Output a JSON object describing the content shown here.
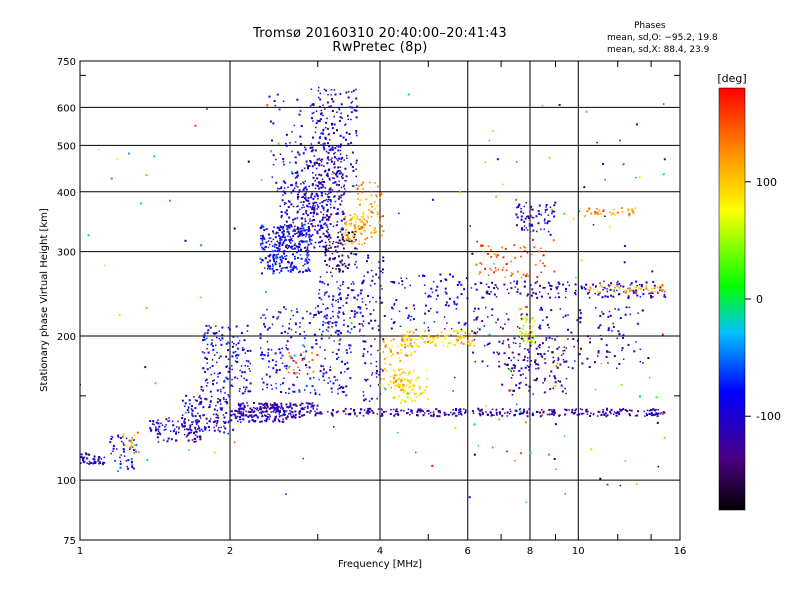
{
  "chart_data": {
    "type": "scatter",
    "title": "Tromsø 20160310 20:40:00–20:41:43",
    "subtitle": "RwPretec (8p)",
    "xlabel": "Frequency [MHz]",
    "ylabel": "Stationary phase Virtual Height [km]",
    "x_scale": "log",
    "y_scale": "log",
    "xlim": [
      1,
      16
    ],
    "ylim": [
      75,
      750
    ],
    "x_ticks": [
      "1",
      "2",
      "4",
      "6",
      "8",
      "10",
      "16"
    ],
    "x_tick_values": [
      1,
      2,
      4,
      6,
      8,
      10,
      16
    ],
    "y_ticks": [
      "75",
      "100",
      "200",
      "300",
      "400",
      "500",
      "600",
      "750"
    ],
    "y_tick_values": [
      75,
      100,
      200,
      300,
      400,
      500,
      600,
      750
    ],
    "x_minor_ticks": [
      3,
      5,
      7,
      9,
      12,
      14
    ],
    "y_minor_ticks": [
      150,
      700
    ],
    "grid": true,
    "colorbar": {
      "label": "[deg]",
      "range": [
        -180,
        180
      ],
      "ticks": [
        "100",
        "0",
        "-100"
      ],
      "tick_values": [
        100,
        0,
        -100
      ],
      "colors": [
        "#000000",
        "#4b0082",
        "#0000ff",
        "#00bfff",
        "#00ff00",
        "#ffff00",
        "#ff8c00",
        "#ff0000"
      ]
    },
    "stats": {
      "heading": "Phases",
      "o_line": "mean, sd,O: −95.2, 19.8",
      "x_line": "mean, sd,X:  88.4, 23.9"
    },
    "clusters": [
      {
        "f": [
          1.0,
          1.12
        ],
        "h": [
          108,
          114
        ],
        "phase": -110,
        "n": 40
      },
      {
        "f": [
          1.15,
          1.3
        ],
        "h": [
          104,
          124
        ],
        "phase": -80,
        "n": 45
      },
      {
        "f": [
          1.22,
          1.32
        ],
        "h": [
          112,
          126
        ],
        "phase": 120,
        "n": 15
      },
      {
        "f": [
          1.38,
          1.75
        ],
        "h": [
          120,
          135
        ],
        "phase": -115,
        "n": 90
      },
      {
        "f": [
          1.6,
          2.05
        ],
        "h": [
          125,
          150
        ],
        "phase": -105,
        "n": 140
      },
      {
        "f": [
          1.75,
          2.2
        ],
        "h": [
          150,
          210
        ],
        "phase": -95,
        "n": 150
      },
      {
        "f": [
          2.05,
          2.6
        ],
        "h": [
          132,
          145
        ],
        "phase": -110,
        "n": 150
      },
      {
        "f": [
          2.3,
          3.0
        ],
        "h": [
          135,
          145
        ],
        "phase": -115,
        "n": 120
      },
      {
        "f": [
          2.3,
          3.5
        ],
        "h": [
          150,
          230
        ],
        "phase": -90,
        "n": 220
      },
      {
        "f": [
          2.6,
          3.0
        ],
        "h": [
          165,
          185
        ],
        "phase": 140,
        "n": 25
      },
      {
        "f": [
          2.3,
          2.9
        ],
        "h": [
          270,
          340
        ],
        "phase": -85,
        "n": 260
      },
      {
        "f": [
          2.5,
          3.2
        ],
        "h": [
          300,
          420
        ],
        "phase": -100,
        "n": 220
      },
      {
        "f": [
          2.7,
          3.4
        ],
        "h": [
          330,
          500
        ],
        "phase": -110,
        "n": 200
      },
      {
        "f": [
          2.9,
          3.6
        ],
        "h": [
          400,
          660
        ],
        "phase": -105,
        "n": 200
      },
      {
        "f": [
          2.4,
          2.8
        ],
        "h": [
          400,
          640
        ],
        "phase": -90,
        "n": 45
      },
      {
        "f": [
          3.1,
          3.6
        ],
        "h": [
          270,
          330
        ],
        "phase": -140,
        "n": 90
      },
      {
        "f": [
          3.4,
          3.75
        ],
        "h": [
          310,
          360
        ],
        "phase": 110,
        "n": 70
      },
      {
        "f": [
          3.6,
          4.1
        ],
        "h": [
          320,
          420
        ],
        "phase": 120,
        "n": 60
      },
      {
        "f": [
          3.0,
          3.7
        ],
        "h": [
          200,
          270
        ],
        "phase": -95,
        "n": 110
      },
      {
        "f": [
          3.0,
          15.0
        ],
        "h": [
          136,
          141
        ],
        "phase": -115,
        "n": 320
      },
      {
        "f": [
          3.7,
          4.1
        ],
        "h": [
          145,
          300
        ],
        "phase": -110,
        "n": 80
      },
      {
        "f": [
          4.0,
          4.7
        ],
        "h": [
          155,
          200
        ],
        "phase": 110,
        "n": 90
      },
      {
        "f": [
          4.2,
          5.0
        ],
        "h": [
          145,
          170
        ],
        "phase": 80,
        "n": 70
      },
      {
        "f": [
          4.4,
          6.2
        ],
        "h": [
          190,
          205
        ],
        "phase": 100,
        "n": 110
      },
      {
        "f": [
          4.2,
          6.0
        ],
        "h": [
          205,
          270
        ],
        "phase": -100,
        "n": 90
      },
      {
        "f": [
          6.1,
          15.0
        ],
        "h": [
          240,
          260
        ],
        "phase": -110,
        "n": 160
      },
      {
        "f": [
          6.1,
          13.5
        ],
        "h": [
          170,
          230
        ],
        "phase": -105,
        "n": 180
      },
      {
        "f": [
          6.2,
          9.0
        ],
        "h": [
          265,
          310
        ],
        "phase": 150,
        "n": 60
      },
      {
        "f": [
          7.0,
          9.5
        ],
        "h": [
          150,
          200
        ],
        "phase": -130,
        "n": 110
      },
      {
        "f": [
          7.6,
          8.2
        ],
        "h": [
          190,
          220
        ],
        "phase": 60,
        "n": 35
      },
      {
        "f": [
          7.5,
          9.0
        ],
        "h": [
          330,
          380
        ],
        "phase": -110,
        "n": 70
      },
      {
        "f": [
          10.2,
          13.0
        ],
        "h": [
          355,
          370
        ],
        "phase": 130,
        "n": 35
      },
      {
        "f": [
          10.5,
          15.0
        ],
        "h": [
          245,
          255
        ],
        "phase": 110,
        "n": 45
      },
      {
        "f": [
          6.0,
          15.0
        ],
        "h": [
          90,
          650
        ],
        "phase": 0,
        "n": 110
      },
      {
        "f": [
          1.0,
          6.0
        ],
        "h": [
          90,
          650
        ],
        "phase": 0,
        "n": 60
      }
    ]
  }
}
